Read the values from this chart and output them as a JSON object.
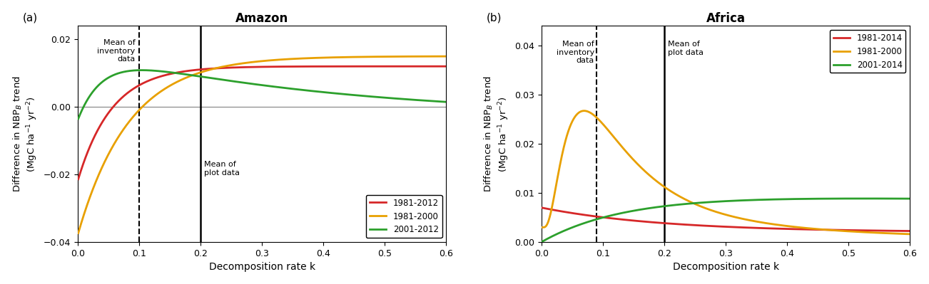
{
  "amazon": {
    "title": "Amazon",
    "panel_label": "(a)",
    "ylim": [
      -0.04,
      0.024
    ],
    "yticks": [
      -0.04,
      -0.02,
      0,
      0.02
    ],
    "xlim": [
      0,
      0.6
    ],
    "xticks": [
      0,
      0.1,
      0.2,
      0.3,
      0.4,
      0.5,
      0.6
    ],
    "dashed_line_x": 0.1,
    "solid_line_x": 0.2,
    "dashed_label": "Mean of\ninventory\ndata",
    "solid_label": "Mean of\nplot data",
    "legend_labels": [
      "1981-2012",
      "1981-2000",
      "2001-2012"
    ],
    "colors": [
      "#d62728",
      "#e8a000",
      "#2ca02c"
    ]
  },
  "africa": {
    "title": "Africa",
    "panel_label": "(b)",
    "ylim": [
      0,
      0.044
    ],
    "yticks": [
      0,
      0.01,
      0.02,
      0.03,
      0.04
    ],
    "xlim": [
      0,
      0.6
    ],
    "xticks": [
      0,
      0.1,
      0.2,
      0.3,
      0.4,
      0.5,
      0.6
    ],
    "dashed_line_x": 0.09,
    "solid_line_x": 0.2,
    "dashed_label": "Mean of\ninventory\ndata",
    "solid_label": "Mean of\nplot data",
    "legend_labels": [
      "1981-2014",
      "1981-2000",
      "2001-2014"
    ],
    "colors": [
      "#d62728",
      "#e8a000",
      "#2ca02c"
    ]
  }
}
